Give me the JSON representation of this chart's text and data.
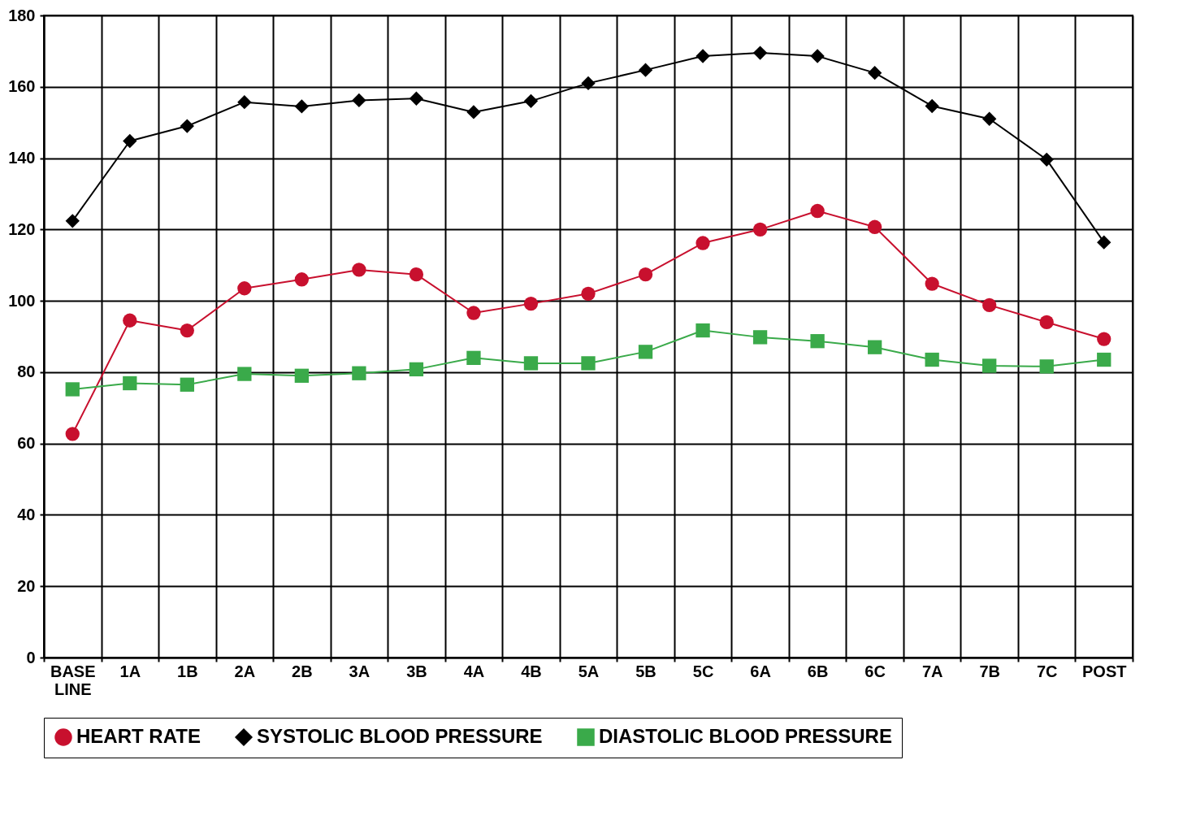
{
  "chart_data": {
    "type": "line",
    "categories": [
      "BASE LINE",
      "1A",
      "1B",
      "2A",
      "2B",
      "3A",
      "3B",
      "4A",
      "4B",
      "5A",
      "5B",
      "5C",
      "6A",
      "6B",
      "6C",
      "7A",
      "7B",
      "7C",
      "POST"
    ],
    "ylim": [
      0,
      180
    ],
    "yticks": [
      0,
      20,
      40,
      60,
      80,
      100,
      120,
      140,
      160,
      180
    ],
    "grid": true,
    "legend": "bottom",
    "series": [
      {
        "name": "HEART RATE",
        "color": "#c8102e",
        "marker": "circle",
        "values": [
          62.7,
          94.5,
          91.7,
          103.5,
          106,
          108.7,
          107.4,
          96.6,
          99.2,
          102,
          107.4,
          116.2,
          120,
          125.2,
          120.7,
          104.8,
          98.8,
          94,
          89.3
        ]
      },
      {
        "name": "SYSTOLIC BLOOD PRESSURE",
        "color": "#000000",
        "marker": "diamond",
        "values": [
          122.4,
          144.8,
          149,
          155.7,
          154.5,
          156.2,
          156.7,
          152.9,
          156,
          161,
          164.7,
          168.6,
          169.5,
          168.6,
          163.9,
          154.6,
          151,
          139.6,
          116.4
        ]
      },
      {
        "name": "DIASTOLIC BLOOD PRESSURE",
        "color": "#3aaa4a",
        "marker": "square",
        "values": [
          75.2,
          76.9,
          76.5,
          79.5,
          79,
          79.7,
          80.8,
          84,
          82.5,
          82.5,
          85.7,
          91.7,
          89.8,
          88.7,
          87,
          83.5,
          81.8,
          81.6,
          83.5
        ]
      }
    ]
  }
}
